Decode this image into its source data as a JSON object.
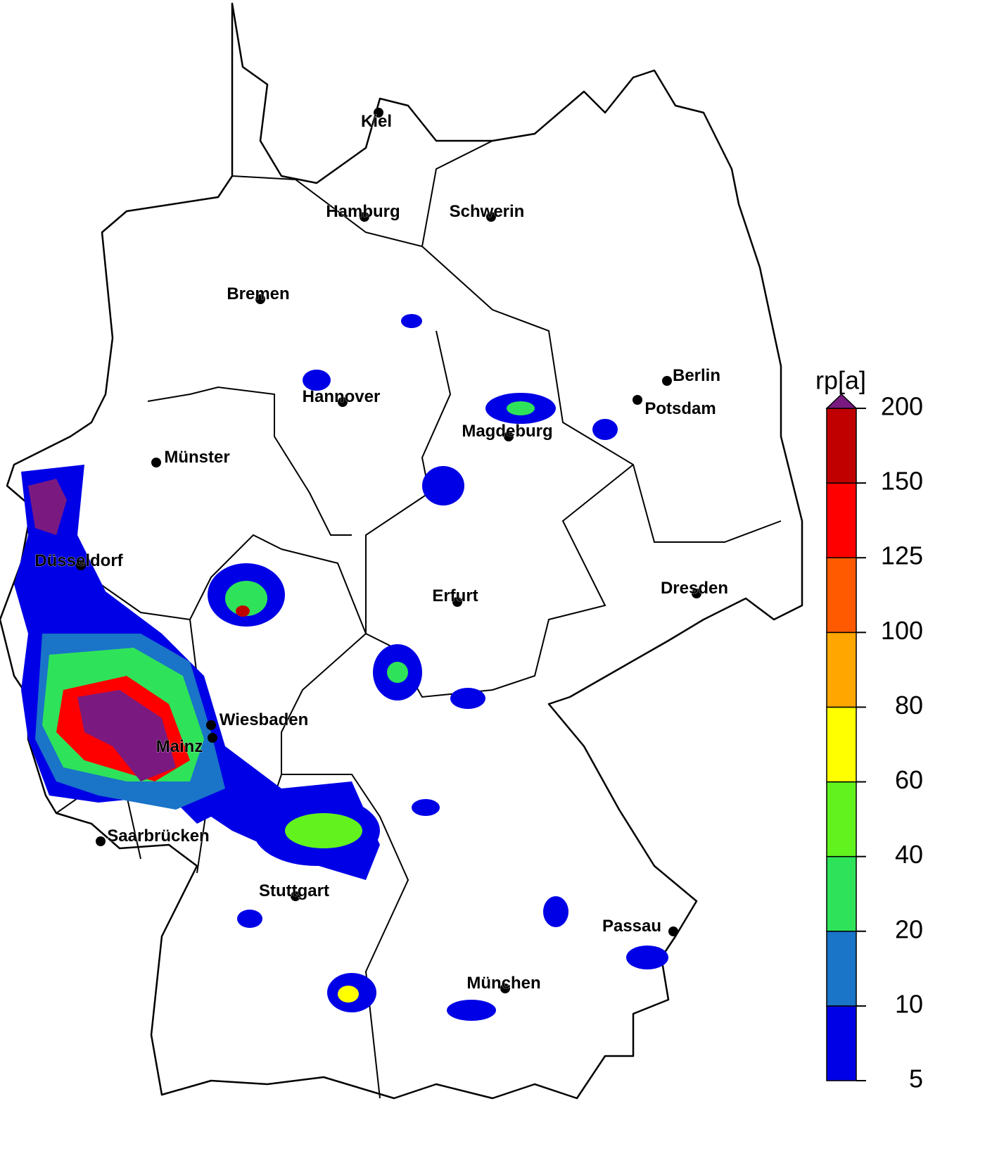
{
  "map": {
    "cities": [
      "Kiel",
      "Hamburg",
      "Schwerin",
      "Bremen",
      "Hannover",
      "Berlin",
      "Potsdam",
      "Magdeburg",
      "Münster",
      "Düsseldorf",
      "Erfurt",
      "Dresden",
      "Wiesbaden",
      "Mainz",
      "Saarbrücken",
      "Stuttgart",
      "Passau",
      "München"
    ]
  },
  "colorbar": {
    "title": "rp[a]",
    "ticks": [
      5,
      10,
      20,
      40,
      60,
      80,
      100,
      125,
      150,
      200
    ],
    "colors": [
      "#0000e6",
      "#1a74c8",
      "#2ee35a",
      "#62f21e",
      "#ffff00",
      "#ffa600",
      "#ff5a00",
      "#ff0000",
      "#c00000"
    ],
    "extend_color": "#7a1a80"
  }
}
